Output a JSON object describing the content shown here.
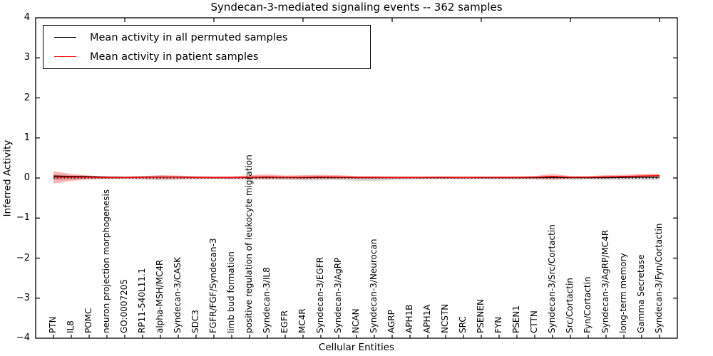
{
  "title": "Syndecan-3-mediated signaling events -- 362 samples",
  "axes": {
    "xlabel": "Cellular Entities",
    "ylabel": "Inferred Activity"
  },
  "legend": {
    "items": [
      {
        "label": "Mean activity in all permuted samples",
        "color": "#000000"
      },
      {
        "label": "Mean activity in patient samples",
        "color": "#ff0000"
      }
    ]
  },
  "chart_data": {
    "type": "line",
    "title": "Syndecan-3-mediated signaling events -- 362 samples",
    "xlabel": "Cellular Entities",
    "ylabel": "Inferred Activity",
    "ylim": [
      -4,
      4
    ],
    "yticks": [
      4,
      3,
      2,
      1,
      0,
      -1,
      -2,
      -3,
      -4
    ],
    "ytick_labels": [
      "4",
      "3",
      "2",
      "1",
      "0",
      "−1",
      "−2",
      "−3",
      "−4"
    ],
    "grid": false,
    "legend_position": "upper left",
    "zero_line": 0,
    "categories": [
      "PTN",
      "IL8",
      "POMC",
      "neuron projection morphogenesis",
      "GO:0007205",
      "RP11-540L11.1",
      "alpha-MSH/MC4R",
      "Syndecan-3/CASK",
      "SDC3",
      "FGFR/FGF/Syndecan-3",
      "limb bud formation",
      "positive regulation of leukocyte migration",
      "Syndecan-3/IL8",
      "EGFR",
      "MC4R",
      "Syndecan-3/EGFR",
      "Syndecan-3/AgRP",
      "NCAN",
      "Syndecan-3/Neurocan",
      "AGRP",
      "APH1B",
      "APH1A",
      "NCSTN",
      "SRC",
      "PSENEN",
      "FYN",
      "PSEN1",
      "CTTN",
      "Syndecan-3/Src/Cortactin",
      "Src/Cortactin",
      "Fyn/Cortactin",
      "Syndecan-3/AgRP/MC4R",
      "long-term memory",
      "Gamma Secretase",
      "Syndecan-3/Fyn/Cortactin"
    ],
    "series": [
      {
        "name": "Mean activity in all permuted samples",
        "color": "#000000",
        "values": [
          0.05,
          0.04,
          0.035,
          0.02,
          0.015,
          0.02,
          0.025,
          0.02,
          0.015,
          0.01,
          0.01,
          0.015,
          0.02,
          0.015,
          0.01,
          0.015,
          0.015,
          0.01,
          0.01,
          0.01,
          0.01,
          0.01,
          0.01,
          0.01,
          0.01,
          0.01,
          0.01,
          0.01,
          0.015,
          0.01,
          0.01,
          0.01,
          0.015,
          0.02,
          0.02
        ]
      },
      {
        "name": "Mean activity in patient samples",
        "color": "#ff0000",
        "values": [
          0.02,
          0.02,
          0.02,
          0.01,
          0.01,
          0.015,
          0.02,
          0.02,
          0.01,
          0.01,
          0.01,
          0.02,
          0.03,
          0.02,
          0.02,
          0.03,
          0.025,
          0.015,
          0.015,
          0.01,
          0.01,
          0.015,
          0.015,
          0.01,
          0.015,
          0.015,
          0.015,
          0.02,
          0.04,
          0.02,
          0.02,
          0.03,
          0.04,
          0.05,
          0.06
        ]
      }
    ],
    "bands": [
      {
        "name": "permuted-samples-range",
        "color": "#888888",
        "opacity": 0.32,
        "upper": [
          0.09,
          0.07,
          0.06,
          0.045,
          0.04,
          0.05,
          0.06,
          0.055,
          0.04,
          0.035,
          0.035,
          0.045,
          0.05,
          0.04,
          0.04,
          0.045,
          0.045,
          0.04,
          0.04,
          0.035,
          0.035,
          0.035,
          0.035,
          0.035,
          0.035,
          0.035,
          0.035,
          0.04,
          0.05,
          0.035,
          0.035,
          0.04,
          0.04,
          0.045,
          0.05
        ],
        "lower": [
          -0.05,
          -0.04,
          -0.035,
          -0.03,
          -0.03,
          -0.045,
          -0.06,
          -0.05,
          -0.035,
          -0.03,
          -0.035,
          -0.04,
          -0.04,
          -0.05,
          -0.06,
          -0.06,
          -0.05,
          -0.07,
          -0.08,
          -0.05,
          -0.04,
          -0.035,
          -0.035,
          -0.035,
          -0.035,
          -0.04,
          -0.04,
          -0.04,
          -0.05,
          -0.04,
          -0.04,
          -0.05,
          -0.05,
          -0.05,
          -0.05
        ]
      },
      {
        "name": "patient-samples-range",
        "color": "#ff0000",
        "opacity": 0.3,
        "upper": [
          0.17,
          0.1,
          0.06,
          0.04,
          0.035,
          0.05,
          0.07,
          0.06,
          0.045,
          0.04,
          0.04,
          0.07,
          0.09,
          0.06,
          0.07,
          0.08,
          0.07,
          0.05,
          0.05,
          0.04,
          0.04,
          0.04,
          0.045,
          0.04,
          0.04,
          0.04,
          0.045,
          0.05,
          0.1,
          0.05,
          0.05,
          0.07,
          0.08,
          0.1,
          0.11
        ],
        "lower": [
          -0.14,
          -0.07,
          -0.03,
          -0.02,
          -0.015,
          -0.02,
          -0.03,
          -0.02,
          -0.02,
          -0.015,
          -0.02,
          -0.03,
          -0.03,
          -0.02,
          -0.03,
          -0.02,
          -0.02,
          -0.02,
          -0.02,
          -0.02,
          -0.015,
          -0.015,
          -0.015,
          -0.015,
          -0.015,
          -0.015,
          -0.02,
          -0.02,
          -0.035,
          -0.015,
          -0.015,
          -0.01,
          0.0,
          0.01,
          0.01
        ]
      }
    ]
  }
}
